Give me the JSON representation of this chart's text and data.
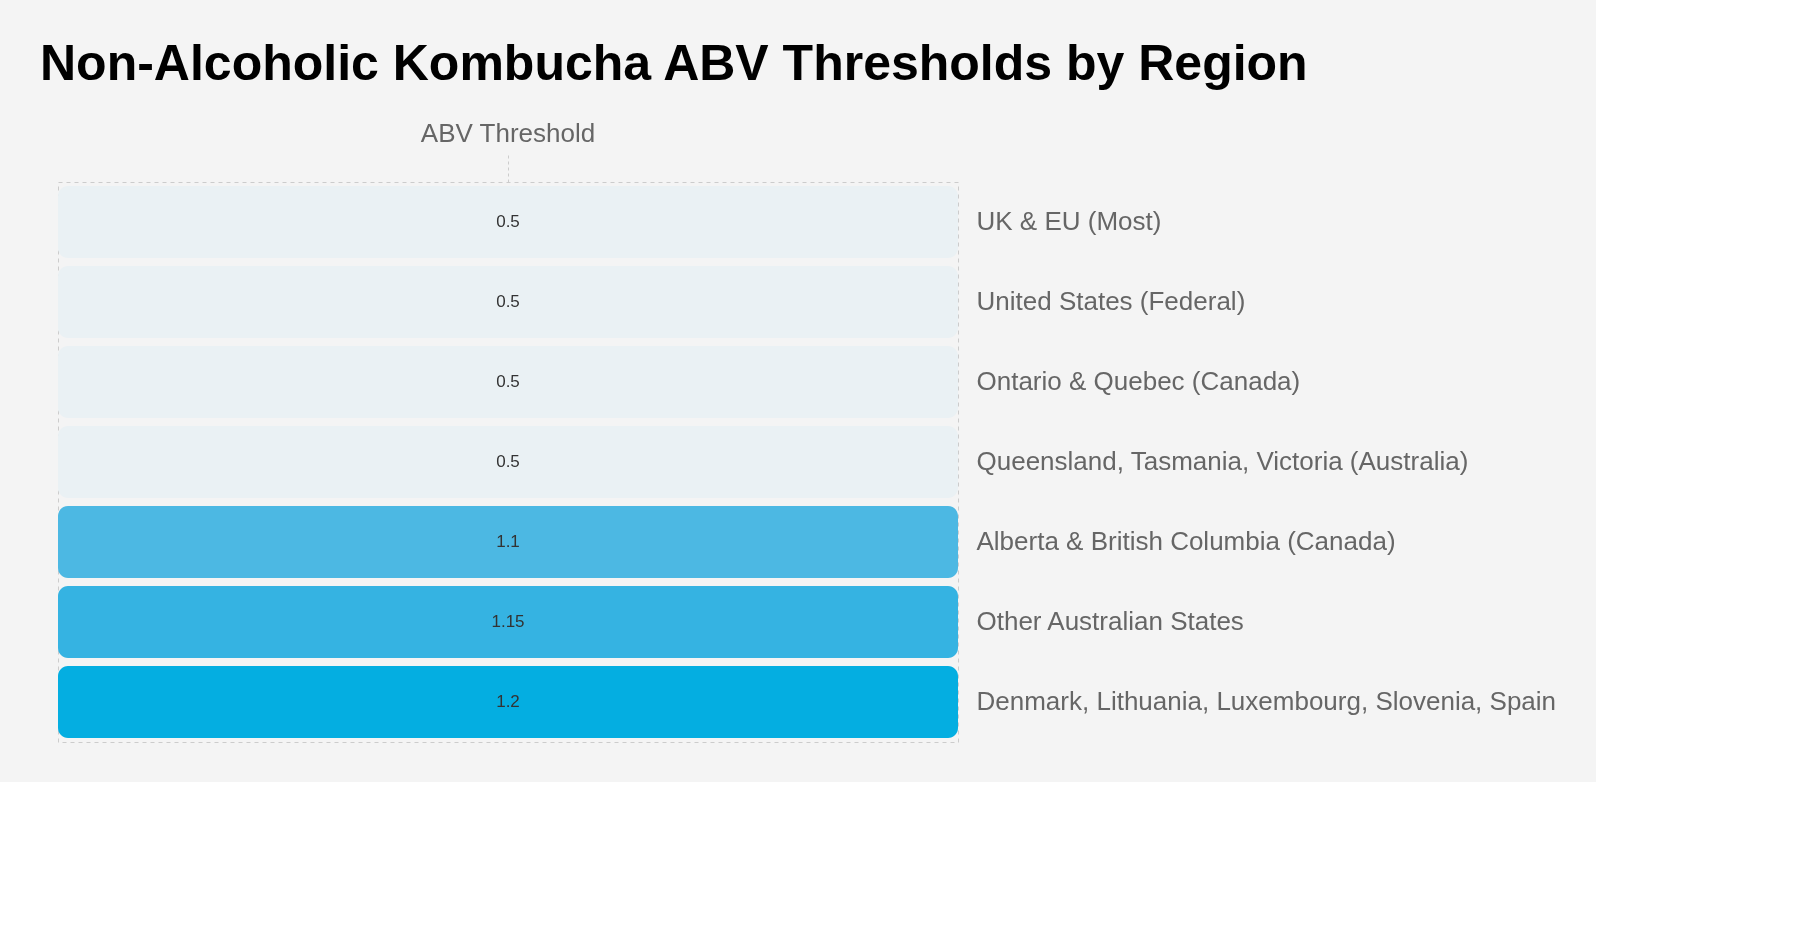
{
  "chart_data": {
    "type": "heatmap",
    "title": "Non-Alcoholic Kombucha ABV Thresholds by Region",
    "categories": [
      "ABV Threshold"
    ],
    "y_categories": [
      null,
      null,
      null,
      null,
      null,
      null,
      null
    ],
    "y2_categories": [
      "UK & EU (Most)",
      "United States (Federal)",
      "Ontario & Quebec (Canada)",
      "Queensland, Tasmania, Victoria (Australia)",
      "Alberta & British Columbia (Canada)",
      "Other Australian States",
      "Denmark, Lithuania, Luxembourg, Slovenia, Spain"
    ],
    "cells": [
      [
        0.5
      ],
      [
        0.5
      ],
      [
        0.5
      ],
      [
        0.5
      ],
      [
        1.1
      ],
      [
        1.15
      ],
      [
        1.2
      ]
    ],
    "cell_labels": [
      [
        "0.5"
      ],
      [
        "0.5"
      ],
      [
        "0.5"
      ],
      [
        "0.5"
      ],
      [
        "1.1"
      ],
      [
        "1.15"
      ],
      [
        "1.2"
      ]
    ],
    "data_labels": true,
    "grid": false,
    "legend": false
  }
}
